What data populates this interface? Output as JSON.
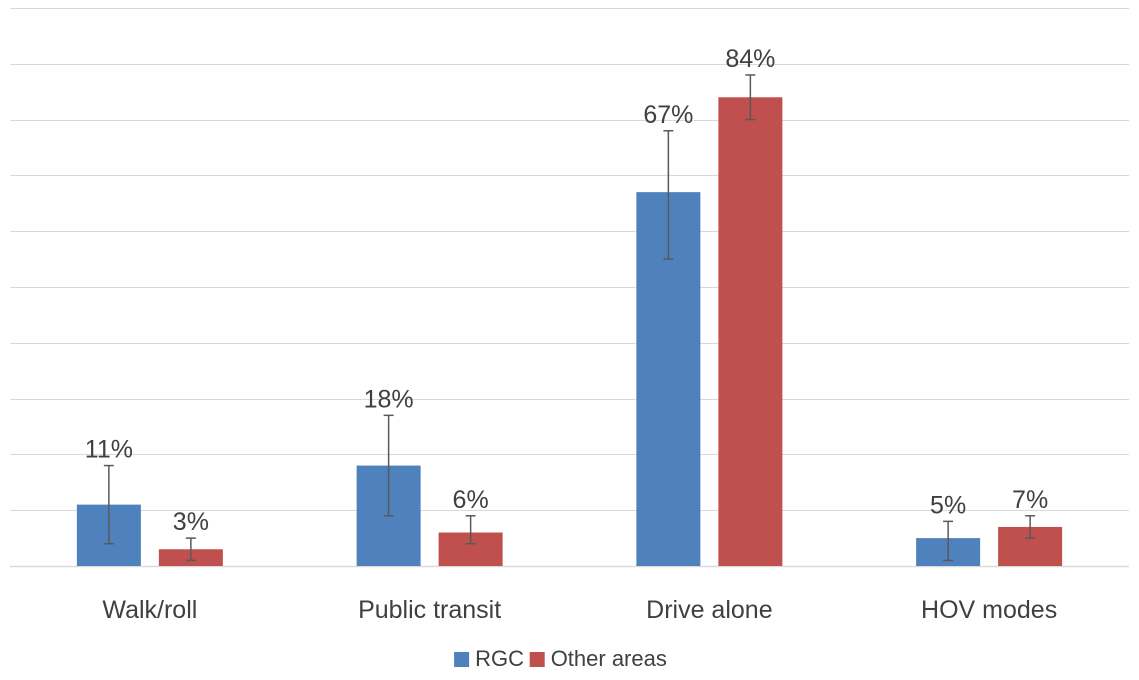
{
  "chart_data": {
    "type": "bar",
    "categories": [
      "Walk/roll",
      "Public transit",
      "Drive alone",
      "HOV modes"
    ],
    "series": [
      {
        "name": "RGC",
        "color": "#4f81bd",
        "values": [
          11,
          18,
          67,
          5
        ],
        "labels": [
          "11%",
          "18%",
          "67%",
          "5%"
        ],
        "error_low": [
          4,
          9,
          55,
          1
        ],
        "error_high": [
          18,
          27,
          78,
          8
        ]
      },
      {
        "name": "Other areas",
        "color": "#c0504d",
        "values": [
          3,
          6,
          84,
          7
        ],
        "labels": [
          "3%",
          "6%",
          "84%",
          "7%"
        ],
        "error_low": [
          1,
          4,
          80,
          5
        ],
        "error_high": [
          5,
          9,
          88,
          9
        ]
      }
    ],
    "ylim": [
      0,
      100
    ],
    "grid": true,
    "legend": "bottom-center",
    "error_bars": true
  }
}
